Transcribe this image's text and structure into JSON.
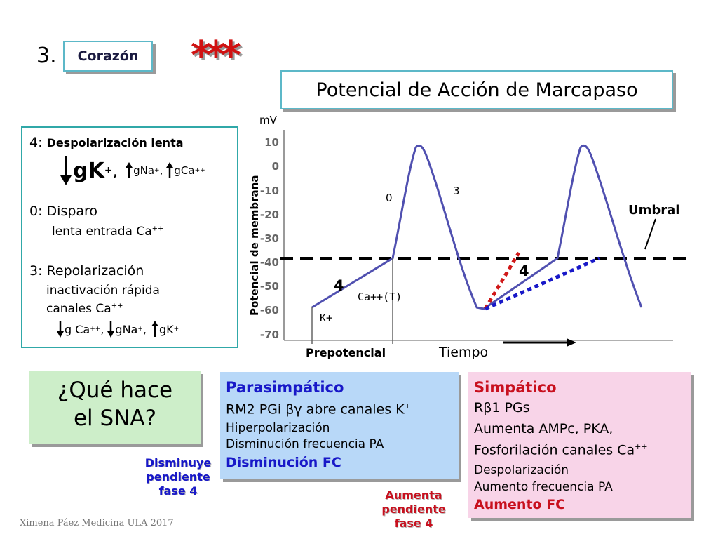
{
  "header": {
    "number": "3.",
    "tag": "Corazón",
    "stars": "***",
    "title": "Potencial de Acción de Marcapaso"
  },
  "phases": {
    "phase4_num": "4:",
    "phase4_title": "Despolarización lenta",
    "phase4_gk": "gK",
    "phase4_gk_sup": "+",
    "phase4_comma": ",",
    "phase4_gna": "gNa",
    "phase4_gna_sup": "+",
    "phase4_sep": ",",
    "phase4_gca": "gCa",
    "phase4_gca_sup": "++",
    "phase0_title": "0: Disparo",
    "phase0_desc": "lenta entrada Ca",
    "phase0_desc_sup": "++",
    "phase3_title": "3: Repolarización",
    "phase3_desc1": "inactivación rápida",
    "phase3_desc2": "canales Ca",
    "phase3_desc2_sup": "++",
    "phase3_g1": "g Ca",
    "phase3_g1_sup": "++",
    "phase3_g2": ",",
    "phase3_g3": "gNa",
    "phase3_g3_sup": "+",
    "phase3_g4": ",",
    "phase3_g5": "gK",
    "phase3_g5_sup": "+"
  },
  "graph": {
    "y_unit": "mV",
    "y_label": "Potencial de membrana",
    "y_ticks": [
      "10",
      "0",
      "-10",
      "-20",
      "-30",
      "-40",
      "-50",
      "-60",
      "-70"
    ],
    "label_0": "0",
    "label_3": "3",
    "label_4a": "4",
    "label_4b": "4",
    "label_umbral": "Umbral",
    "label_ca": "Ca++(T)",
    "label_k": "K+",
    "label_prepotencial": "Prepotencial",
    "label_tiempo": "Tiempo"
  },
  "question": {
    "line1": "¿Qué hace",
    "line2": "el SNA?"
  },
  "parasympathetic": {
    "title": "Parasimpático",
    "line1": "RM2 PGi βγ abre canales K",
    "line1_sup": "+",
    "line2": "Hiperpolarización",
    "line3": "Disminución frecuencia PA",
    "line4": "Disminución FC",
    "note": [
      "Disminuye",
      "pendiente",
      "fase 4"
    ]
  },
  "sympathetic": {
    "title": "Simpático",
    "line1": "Rβ1 PGs",
    "line2": "Aumenta AMPc, PKA,",
    "line3": "Fosforilación canales Ca",
    "line3_sup": "++",
    "line4": "Despolarización",
    "line5": "Aumento frecuencia PA",
    "line6": "Aumento FC",
    "note": [
      "Aumenta",
      "pendiente",
      "fase 4"
    ]
  },
  "footer": {
    "credit": "Ximena Páez Medicina ULA 2017"
  },
  "colors": {
    "accent_teal": "#5cb8c8",
    "blue_text": "#1818c8",
    "red_text": "#c8101e",
    "curve": "#5050b0",
    "para_bg": "#b8d8f8",
    "sim_bg": "#f8d4e8",
    "question_bg": "#cdeec9"
  }
}
